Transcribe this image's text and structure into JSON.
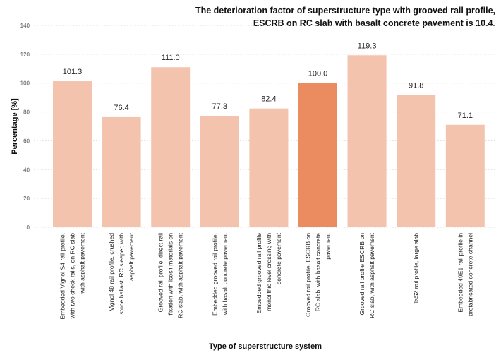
{
  "chart_data": {
    "type": "bar",
    "title": "The deterioration factor of superstructure type with grooved rail profile, ESCRB on RC slab with basalt concrete pavement is 10.4.",
    "xlabel": "Type of superstructure system",
    "ylabel": "Percentage [%]",
    "ylim": [
      0,
      140
    ],
    "yticks": [
      0,
      20,
      40,
      60,
      80,
      100,
      120,
      140
    ],
    "grid": true,
    "categories": [
      "Embedded Vignol S4 rail profile, with two check rails, on RC slab with asphalt pavement",
      "Vignol 48 rail profile, crushed stone ballast, RC sleeper, with asphalt pavement",
      "Grooved rail profile, direct rail fixation with Icosit materials on RC slab, with asphalt pavement",
      "Embedded grooved rail profile, with basalt concrete pavement",
      "Embedded grooved rail profile monolithic level crossing with concrete pavement",
      "Grooved rail profile, ESCRB on RC slab, with basalt concrete pavement",
      "Grooved rail profile ESCRB on RC slab, with asphalt pavement",
      "TsS2 rail profile, large slab",
      "Embedded 49E1 rail profile in prefabricated concrete channel"
    ],
    "category_lines": [
      [
        "Embedded Vignol S4 rail profile,",
        "with two check rails, on RC slab",
        "with asphalt pavement"
      ],
      [
        "Vignol 48 rail profile, crushed",
        "stone ballast, RC sleeper, with",
        "asphalt pavement"
      ],
      [
        "Grooved rail profile, direct rail",
        "fixation with Icosit materials on",
        "RC slab, with asphalt pavement"
      ],
      [
        "Embedded grooved rail profile,",
        "with basalt concrete pavement"
      ],
      [
        "Embedded grooved rail profile",
        "monolithic level crossing with",
        "concrete pavement"
      ],
      [
        "Grooved rail profile, ESCRB on",
        "RC slab, with basalt concrete",
        "pavement"
      ],
      [
        "Grooved rail profile ESCRB on",
        "RC slab, with asphalt pavement"
      ],
      [
        "TsS2 rail profile, large slab"
      ],
      [
        "Embedded 49E1 rail profile in",
        "prefabricated concrete channel"
      ]
    ],
    "values": [
      101.3,
      76.4,
      111.0,
      77.3,
      82.4,
      100.0,
      119.3,
      91.8,
      71.1
    ],
    "value_labels": [
      "101.3",
      "76.4",
      "111.0",
      "77.3",
      "82.4",
      "100.0",
      "119.3",
      "91.8",
      "71.1"
    ],
    "highlight_index": 5,
    "colors": {
      "bar": "#F4C3AE",
      "highlight": "#EB8B60",
      "grid": "#D9D9D9"
    }
  }
}
